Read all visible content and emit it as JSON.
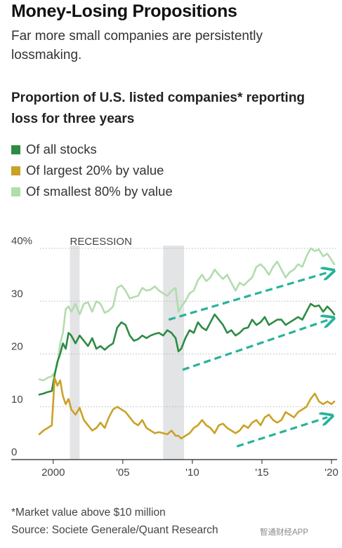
{
  "headline": "Money-Losing Propositions",
  "dek": "Far more small companies are persistently lossmaking.",
  "footnote": "*Market value above $10 million",
  "source": "Source: Societe Generale/Quant Research",
  "watermark": "智通财经APP",
  "chart_data": {
    "type": "line",
    "title": "Proportion of U.S. listed companies* reporting loss for three years",
    "xlabel": "",
    "ylabel": "",
    "xlim": [
      1998.8,
      2020.4
    ],
    "ylim": [
      0,
      40
    ],
    "grid": true,
    "legend_position": "top-left",
    "y_ticks": [
      {
        "value": 40,
        "label": "40%"
      },
      {
        "value": 30,
        "label": "30"
      },
      {
        "value": 20,
        "label": "20"
      },
      {
        "value": 10,
        "label": "10"
      },
      {
        "value": 0,
        "label": "0"
      }
    ],
    "x_ticks": [
      {
        "value": 2000,
        "label": "2000"
      },
      {
        "value": 2005,
        "label": "'05"
      },
      {
        "value": 2010,
        "label": "'10"
      },
      {
        "value": 2015,
        "label": "'15"
      },
      {
        "value": 2020,
        "label": "'20"
      }
    ],
    "recessions": [
      {
        "label": "RECESSION",
        "start": 2001.2,
        "end": 2001.9
      },
      {
        "label": "",
        "start": 2007.9,
        "end": 2009.4
      }
    ],
    "series": [
      {
        "name": "Of smallest 80% by value",
        "color": "#b2dcae",
        "x": [
          1999.0,
          1999.3,
          1999.6,
          1999.9,
          2000.1,
          2000.3,
          2000.5,
          2000.7,
          2000.9,
          2001.1,
          2001.3,
          2001.6,
          2001.9,
          2002.2,
          2002.5,
          2002.8,
          2003.1,
          2003.4,
          2003.7,
          2004.0,
          2004.3,
          2004.6,
          2004.9,
          2005.2,
          2005.5,
          2005.8,
          2006.1,
          2006.4,
          2006.7,
          2007.0,
          2007.3,
          2007.6,
          2007.9,
          2008.2,
          2008.5,
          2008.8,
          2009.0,
          2009.2,
          2009.5,
          2009.8,
          2010.1,
          2010.4,
          2010.7,
          2011.0,
          2011.3,
          2011.6,
          2011.9,
          2012.2,
          2012.5,
          2012.8,
          2013.1,
          2013.4,
          2013.7,
          2014.0,
          2014.3,
          2014.6,
          2014.9,
          2015.2,
          2015.5,
          2015.8,
          2016.1,
          2016.4,
          2016.7,
          2017.0,
          2017.3,
          2017.6,
          2017.9,
          2018.2,
          2018.5,
          2018.8,
          2019.1,
          2019.4,
          2019.7,
          2020.0,
          2020.2
        ],
        "values": [
          15.2,
          15.0,
          15.5,
          15.8,
          16.5,
          18.0,
          22.0,
          24.0,
          28.5,
          29.0,
          28.0,
          29.5,
          27.5,
          29.5,
          29.8,
          28.0,
          30.0,
          29.5,
          27.8,
          28.2,
          29.0,
          32.5,
          33.0,
          32.0,
          30.5,
          30.8,
          31.0,
          32.5,
          32.0,
          32.2,
          32.8,
          32.0,
          31.5,
          31.0,
          32.0,
          32.5,
          28.0,
          29.0,
          30.0,
          31.5,
          32.0,
          34.0,
          35.0,
          33.8,
          34.5,
          36.0,
          35.0,
          34.2,
          35.0,
          33.5,
          32.0,
          33.5,
          33.0,
          33.8,
          34.5,
          36.5,
          37.0,
          36.2,
          35.0,
          36.5,
          37.5,
          36.0,
          34.5,
          35.5,
          36.0,
          37.0,
          36.5,
          38.5,
          40.0,
          39.5,
          39.8,
          38.5,
          39.0,
          37.8,
          37.0
        ]
      },
      {
        "name": "Of all stocks",
        "color": "#2e8b43",
        "x": [
          1999.0,
          1999.3,
          1999.6,
          1999.9,
          2000.1,
          2000.3,
          2000.5,
          2000.7,
          2000.9,
          2001.1,
          2001.3,
          2001.6,
          2001.9,
          2002.2,
          2002.5,
          2002.8,
          2003.1,
          2003.4,
          2003.7,
          2004.0,
          2004.3,
          2004.6,
          2004.9,
          2005.2,
          2005.5,
          2005.8,
          2006.1,
          2006.4,
          2006.7,
          2007.0,
          2007.3,
          2007.6,
          2007.9,
          2008.2,
          2008.5,
          2008.8,
          2009.0,
          2009.2,
          2009.5,
          2009.8,
          2010.1,
          2010.4,
          2010.7,
          2011.0,
          2011.3,
          2011.6,
          2011.9,
          2012.2,
          2012.5,
          2012.8,
          2013.1,
          2013.4,
          2013.7,
          2014.0,
          2014.3,
          2014.6,
          2014.9,
          2015.2,
          2015.5,
          2015.8,
          2016.1,
          2016.4,
          2016.7,
          2017.0,
          2017.3,
          2017.6,
          2017.9,
          2018.2,
          2018.5,
          2018.8,
          2019.1,
          2019.4,
          2019.7,
          2020.0,
          2020.2
        ],
        "values": [
          12.3,
          12.5,
          12.8,
          13.0,
          16.0,
          18.5,
          20.0,
          22.0,
          21.0,
          24.0,
          23.5,
          22.0,
          23.5,
          22.5,
          21.5,
          23.0,
          21.0,
          21.5,
          20.8,
          21.5,
          22.0,
          25.0,
          26.0,
          25.5,
          23.5,
          22.5,
          22.8,
          23.5,
          23.0,
          23.5,
          23.8,
          24.0,
          23.5,
          24.5,
          24.0,
          23.0,
          20.5,
          21.0,
          23.0,
          24.5,
          24.0,
          26.0,
          25.0,
          24.5,
          26.0,
          27.5,
          26.5,
          25.5,
          24.0,
          24.5,
          23.5,
          24.0,
          24.8,
          25.0,
          26.5,
          25.5,
          26.0,
          27.0,
          25.5,
          26.0,
          26.5,
          26.5,
          25.5,
          26.0,
          26.5,
          27.0,
          26.5,
          28.0,
          29.5,
          29.0,
          29.2,
          28.0,
          29.0,
          28.2,
          27.5
        ]
      },
      {
        "name": "Of largest 20% by value",
        "color": "#c9a227",
        "x": [
          1999.0,
          1999.3,
          1999.6,
          1999.9,
          2000.1,
          2000.3,
          2000.5,
          2000.7,
          2000.9,
          2001.1,
          2001.3,
          2001.6,
          2001.9,
          2002.2,
          2002.5,
          2002.8,
          2003.1,
          2003.4,
          2003.7,
          2004.0,
          2004.3,
          2004.6,
          2004.9,
          2005.2,
          2005.5,
          2005.8,
          2006.1,
          2006.4,
          2006.7,
          2007.0,
          2007.3,
          2007.6,
          2007.9,
          2008.2,
          2008.5,
          2008.8,
          2009.0,
          2009.2,
          2009.5,
          2009.8,
          2010.1,
          2010.4,
          2010.7,
          2011.0,
          2011.3,
          2011.6,
          2011.9,
          2012.2,
          2012.5,
          2012.8,
          2013.1,
          2013.4,
          2013.7,
          2014.0,
          2014.3,
          2014.6,
          2014.9,
          2015.2,
          2015.5,
          2015.8,
          2016.1,
          2016.4,
          2016.7,
          2017.0,
          2017.3,
          2017.6,
          2017.9,
          2018.2,
          2018.5,
          2018.8,
          2019.1,
          2019.4,
          2019.7,
          2020.0,
          2020.2
        ],
        "values": [
          4.8,
          5.5,
          6.0,
          6.5,
          15.5,
          14.0,
          15.0,
          12.0,
          10.5,
          11.5,
          9.5,
          8.5,
          9.8,
          7.5,
          6.5,
          5.5,
          6.0,
          7.0,
          6.0,
          8.0,
          9.5,
          10.0,
          9.5,
          9.0,
          8.0,
          7.0,
          6.5,
          7.5,
          6.0,
          5.5,
          5.0,
          5.2,
          5.0,
          4.8,
          5.5,
          4.5,
          4.5,
          4.0,
          4.5,
          5.0,
          6.0,
          6.5,
          7.5,
          6.5,
          6.0,
          5.0,
          6.5,
          6.8,
          6.0,
          5.5,
          5.0,
          5.5,
          6.5,
          6.0,
          7.0,
          7.5,
          6.5,
          8.0,
          8.5,
          7.5,
          7.0,
          7.5,
          9.0,
          8.5,
          8.0,
          9.0,
          9.5,
          10.0,
          11.5,
          12.5,
          11.0,
          10.5,
          11.0,
          10.5,
          11.0
        ]
      }
    ],
    "trend_arrows": [
      {
        "from": [
          2008.3,
          26.5
        ],
        "to": [
          2019.8,
          35.5
        ]
      },
      {
        "from": [
          2009.3,
          17.0
        ],
        "to": [
          2019.8,
          26.5
        ]
      },
      {
        "from": [
          2013.2,
          2.5
        ],
        "to": [
          2019.7,
          8.0
        ]
      }
    ],
    "trend_arrow_color": "#27b39a"
  }
}
